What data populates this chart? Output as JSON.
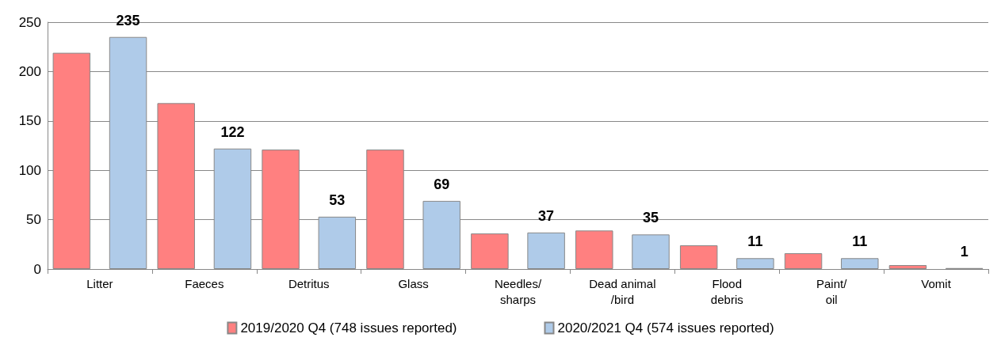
{
  "chart_data": {
    "type": "bar",
    "categories": [
      "Litter",
      "Faeces",
      "Detritus",
      "Glass",
      "Needles/\nsharps",
      "Dead animal\n/bird",
      "Flood\ndebris",
      "Paint/\noil",
      "Vomit"
    ],
    "series": [
      {
        "name": "2019/2020 Q4 (748 issues reported)",
        "color": "#ff8080",
        "values": [
          219,
          168,
          121,
          121,
          36,
          39,
          24,
          16,
          4
        ]
      },
      {
        "name": "2020/2021 Q4 (574 issues reported)",
        "color": "#afcbe9",
        "values": [
          235,
          122,
          53,
          69,
          37,
          35,
          11,
          11,
          1
        ],
        "value_labels": [
          "235",
          "122",
          "53",
          "69",
          "37",
          "35",
          "11",
          "11",
          "1"
        ]
      }
    ],
    "ylim": [
      0,
      250
    ],
    "yticks": [
      0,
      50,
      100,
      150,
      200,
      250
    ],
    "grid": "y",
    "legend": "bottom"
  }
}
